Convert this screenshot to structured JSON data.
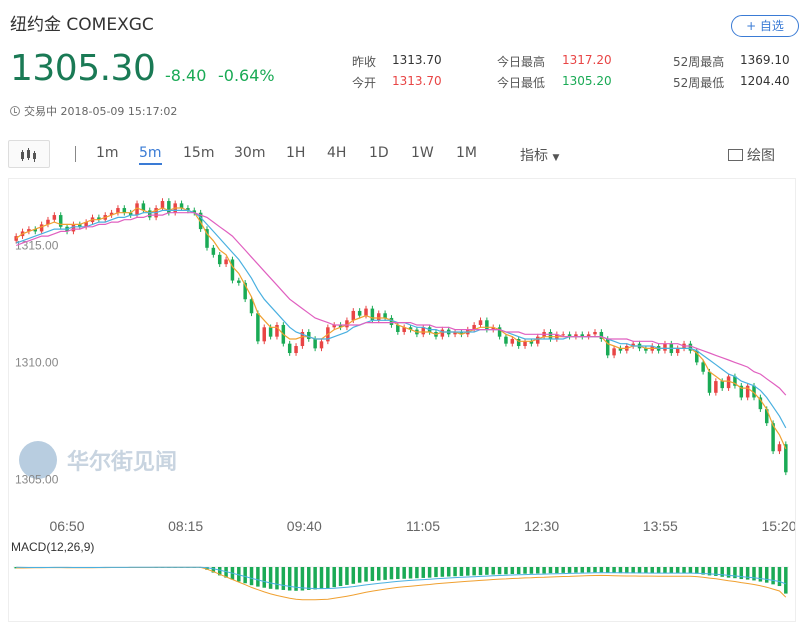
{
  "header": {
    "title": "纽约金 COMEXGC",
    "add_label": "+ 自选"
  },
  "quote": {
    "price": "1305.30",
    "change": "-8.40",
    "change_pct": "-0.64%",
    "status": "交易中 2018-05-09 15:17:02"
  },
  "stats": {
    "prev_close_label": "昨收",
    "prev_close": "1313.70",
    "open_label": "今开",
    "open": "1313.70",
    "day_high_label": "今日最高",
    "day_high": "1317.20",
    "day_low_label": "今日最低",
    "day_low": "1305.20",
    "wk52_high_label": "52周最高",
    "wk52_high": "1369.10",
    "wk52_low_label": "52周最低",
    "wk52_low": "1204.40"
  },
  "toolbar": {
    "timeframes": [
      "1m",
      "5m",
      "15m",
      "30m",
      "1H",
      "4H",
      "1D",
      "1W",
      "1M"
    ],
    "active": "5m",
    "indicator_label": "指标",
    "draw_label": "绘图"
  },
  "watermark": "华尔街见闻",
  "colors": {
    "up": "#e84545",
    "down": "#1aaa55",
    "ma_fast": "#f0a030",
    "ma_mid": "#4ab0e0",
    "ma_slow": "#e060c0",
    "accent": "#3a7bd5"
  },
  "chart_data": [
    {
      "type": "candlestick",
      "y_ticks": [
        "1315.00",
        "1310.00",
        "1305.00"
      ],
      "ylim": [
        1304.5,
        1317.5
      ],
      "x_ticks": [
        "06:50",
        "08:15",
        "09:40",
        "11:05",
        "12:30",
        "13:55",
        "15:20"
      ],
      "close": [
        1315.4,
        1315.6,
        1315.7,
        1315.6,
        1315.9,
        1316.1,
        1316.3,
        1315.8,
        1315.6,
        1315.9,
        1315.8,
        1316.0,
        1316.2,
        1316.1,
        1316.3,
        1316.4,
        1316.6,
        1316.4,
        1316.3,
        1316.8,
        1316.5,
        1316.2,
        1316.6,
        1316.9,
        1316.4,
        1316.8,
        1316.6,
        1316.5,
        1316.4,
        1315.7,
        1314.9,
        1314.6,
        1314.2,
        1314.4,
        1313.5,
        1313.4,
        1312.7,
        1312.1,
        1310.9,
        1311.5,
        1311.1,
        1311.6,
        1310.8,
        1310.4,
        1310.7,
        1311.3,
        1311.0,
        1310.6,
        1310.9,
        1311.5,
        1311.6,
        1311.5,
        1311.8,
        1312.2,
        1312.0,
        1312.3,
        1311.8,
        1312.1,
        1311.9,
        1311.6,
        1311.3,
        1311.5,
        1311.4,
        1311.2,
        1311.5,
        1311.3,
        1311.1,
        1311.4,
        1311.2,
        1311.3,
        1311.2,
        1311.4,
        1311.6,
        1311.8,
        1311.4,
        1311.5,
        1311.1,
        1310.8,
        1311.0,
        1310.7,
        1310.9,
        1310.8,
        1311.1,
        1311.3,
        1311.0,
        1311.2,
        1311.2,
        1311.1,
        1311.2,
        1311.1,
        1311.2,
        1311.3,
        1311.0,
        1310.3,
        1310.6,
        1310.5,
        1310.7,
        1310.8,
        1310.6,
        1310.5,
        1310.7,
        1310.5,
        1310.8,
        1310.4,
        1310.6,
        1310.8,
        1310.5,
        1310.0,
        1309.6,
        1308.7,
        1309.2,
        1308.9,
        1309.4,
        1309.0,
        1308.5,
        1309.0,
        1308.5,
        1308.0,
        1307.4,
        1306.2,
        1306.5,
        1305.3
      ],
      "series": [
        {
          "name": "MA-fast",
          "values": [
            1315.3,
            1315.5,
            1315.6,
            1315.7,
            1315.8,
            1315.9,
            1316.0,
            1315.9,
            1315.9,
            1315.9,
            1315.9,
            1316.0,
            1316.1,
            1316.1,
            1316.2,
            1316.3,
            1316.4,
            1316.4,
            1316.4,
            1316.6,
            1316.5,
            1316.4,
            1316.5,
            1316.6,
            1316.5,
            1316.6,
            1316.6,
            1316.5,
            1316.4,
            1316.0,
            1315.5,
            1315.2,
            1314.8,
            1314.6,
            1314.1,
            1313.8,
            1313.3,
            1312.8,
            1312.1,
            1311.8,
            1311.5,
            1311.5,
            1311.2,
            1311.0,
            1311.0,
            1311.1,
            1311.1,
            1311.0,
            1311.0,
            1311.2,
            1311.4,
            1311.5,
            1311.6,
            1311.8,
            1311.9,
            1312.0,
            1311.9,
            1311.9,
            1311.9,
            1311.8,
            1311.6,
            1311.5,
            1311.4,
            1311.3,
            1311.3,
            1311.3,
            1311.2,
            1311.3,
            1311.3,
            1311.3,
            1311.2,
            1311.3,
            1311.4,
            1311.5,
            1311.5,
            1311.5,
            1311.4,
            1311.2,
            1311.1,
            1310.9,
            1310.9,
            1310.9,
            1311.0,
            1311.1,
            1311.1,
            1311.1,
            1311.1,
            1311.1,
            1311.1,
            1311.1,
            1311.1,
            1311.1,
            1311.1,
            1310.8,
            1310.7,
            1310.6,
            1310.6,
            1310.7,
            1310.7,
            1310.6,
            1310.6,
            1310.6,
            1310.6,
            1310.6,
            1310.6,
            1310.6,
            1310.6,
            1310.4,
            1310.1,
            1309.6,
            1309.4,
            1309.2,
            1309.2,
            1309.1,
            1308.9,
            1308.9,
            1308.7,
            1308.4,
            1308.0,
            1307.3,
            1306.9,
            1306.3
          ]
        },
        {
          "name": "MA-mid",
          "values": [
            1315.1,
            1315.2,
            1315.3,
            1315.4,
            1315.5,
            1315.6,
            1315.7,
            1315.7,
            1315.7,
            1315.8,
            1315.8,
            1315.8,
            1315.9,
            1316.0,
            1316.0,
            1316.1,
            1316.2,
            1316.2,
            1316.3,
            1316.3,
            1316.4,
            1316.4,
            1316.4,
            1316.5,
            1316.5,
            1316.5,
            1316.5,
            1316.5,
            1316.4,
            1316.2,
            1315.9,
            1315.6,
            1315.3,
            1315.0,
            1314.7,
            1314.4,
            1314.0,
            1313.6,
            1313.1,
            1312.7,
            1312.4,
            1312.1,
            1311.8,
            1311.5,
            1311.3,
            1311.2,
            1311.1,
            1311.0,
            1311.0,
            1311.0,
            1311.1,
            1311.2,
            1311.3,
            1311.5,
            1311.6,
            1311.7,
            1311.8,
            1311.8,
            1311.8,
            1311.8,
            1311.7,
            1311.7,
            1311.6,
            1311.5,
            1311.5,
            1311.4,
            1311.4,
            1311.3,
            1311.3,
            1311.3,
            1311.3,
            1311.3,
            1311.3,
            1311.4,
            1311.4,
            1311.4,
            1311.4,
            1311.3,
            1311.2,
            1311.1,
            1311.0,
            1311.0,
            1311.0,
            1311.0,
            1311.0,
            1311.0,
            1311.0,
            1311.1,
            1311.1,
            1311.1,
            1311.1,
            1311.1,
            1311.1,
            1311.0,
            1310.9,
            1310.8,
            1310.8,
            1310.7,
            1310.7,
            1310.7,
            1310.7,
            1310.6,
            1310.6,
            1310.6,
            1310.6,
            1310.6,
            1310.6,
            1310.5,
            1310.3,
            1310.1,
            1309.9,
            1309.7,
            1309.5,
            1309.4,
            1309.2,
            1309.1,
            1309.0,
            1308.8,
            1308.5,
            1308.1,
            1307.7,
            1307.2
          ]
        },
        {
          "name": "MA-slow",
          "values": [
            1315.0,
            1315.1,
            1315.2,
            1315.3,
            1315.4,
            1315.4,
            1315.5,
            1315.6,
            1315.6,
            1315.7,
            1315.7,
            1315.8,
            1315.8,
            1315.9,
            1315.9,
            1316.0,
            1316.0,
            1316.1,
            1316.1,
            1316.2,
            1316.2,
            1316.3,
            1316.3,
            1316.3,
            1316.4,
            1316.4,
            1316.4,
            1316.4,
            1316.4,
            1316.3,
            1316.2,
            1316.0,
            1315.8,
            1315.6,
            1315.4,
            1315.1,
            1314.8,
            1314.5,
            1314.2,
            1313.9,
            1313.6,
            1313.3,
            1313.0,
            1312.7,
            1312.5,
            1312.3,
            1312.1,
            1311.9,
            1311.8,
            1311.7,
            1311.6,
            1311.6,
            1311.6,
            1311.6,
            1311.6,
            1311.7,
            1311.7,
            1311.7,
            1311.7,
            1311.7,
            1311.7,
            1311.7,
            1311.7,
            1311.6,
            1311.6,
            1311.6,
            1311.5,
            1311.5,
            1311.5,
            1311.4,
            1311.4,
            1311.4,
            1311.4,
            1311.4,
            1311.4,
            1311.4,
            1311.4,
            1311.3,
            1311.3,
            1311.3,
            1311.2,
            1311.2,
            1311.2,
            1311.2,
            1311.2,
            1311.2,
            1311.1,
            1311.1,
            1311.1,
            1311.1,
            1311.1,
            1311.1,
            1311.1,
            1311.0,
            1311.0,
            1311.0,
            1311.0,
            1310.9,
            1310.9,
            1310.9,
            1310.9,
            1310.8,
            1310.8,
            1310.8,
            1310.8,
            1310.7,
            1310.7,
            1310.6,
            1310.5,
            1310.4,
            1310.3,
            1310.2,
            1310.1,
            1310.0,
            1309.9,
            1309.8,
            1309.6,
            1309.5,
            1309.3,
            1309.1,
            1308.9,
            1308.6
          ]
        }
      ]
    },
    {
      "type": "bar",
      "title": "MACD(12,26,9)",
      "values": [
        -0.05,
        -0.04,
        -0.03,
        -0.02,
        -0.02,
        -0.01,
        -0.01,
        -0.01,
        -0.02,
        -0.02,
        -0.02,
        -0.02,
        -0.02,
        -0.01,
        -0.01,
        -0.01,
        -0.01,
        -0.01,
        -0.01,
        -0.01,
        -0.01,
        -0.01,
        -0.01,
        -0.01,
        -0.01,
        -0.01,
        -0.01,
        -0.01,
        -0.01,
        -0.01,
        -0.1,
        -0.2,
        -0.3,
        -0.38,
        -0.45,
        -0.52,
        -0.58,
        -0.65,
        -0.7,
        -0.74,
        -0.78,
        -0.8,
        -0.82,
        -0.84,
        -0.85,
        -0.84,
        -0.82,
        -0.8,
        -0.78,
        -0.76,
        -0.72,
        -0.68,
        -0.64,
        -0.6,
        -0.56,
        -0.52,
        -0.5,
        -0.48,
        -0.46,
        -0.44,
        -0.43,
        -0.42,
        -0.41,
        -0.4,
        -0.39,
        -0.38,
        -0.36,
        -0.35,
        -0.34,
        -0.33,
        -0.32,
        -0.31,
        -0.3,
        -0.29,
        -0.28,
        -0.27,
        -0.26,
        -0.26,
        -0.25,
        -0.25,
        -0.24,
        -0.24,
        -0.23,
        -0.23,
        -0.22,
        -0.22,
        -0.21,
        -0.21,
        -0.2,
        -0.2,
        -0.19,
        -0.19,
        -0.19,
        -0.2,
        -0.21,
        -0.22,
        -0.22,
        -0.22,
        -0.22,
        -0.22,
        -0.22,
        -0.22,
        -0.22,
        -0.22,
        -0.22,
        -0.22,
        -0.22,
        -0.24,
        -0.27,
        -0.3,
        -0.32,
        -0.35,
        -0.38,
        -0.4,
        -0.43,
        -0.45,
        -0.48,
        -0.52,
        -0.56,
        -0.62,
        -0.68,
        -0.95
      ]
    }
  ]
}
